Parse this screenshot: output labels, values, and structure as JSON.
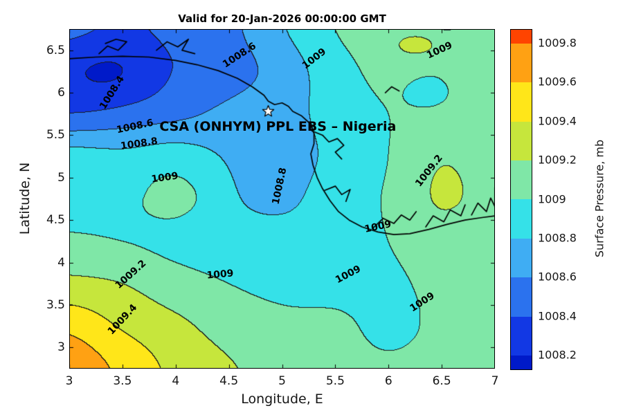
{
  "chart_data": {
    "type": "contour",
    "title": "Valid for 20-Jan-2026 00:00:00 GMT",
    "xlabel": "Longitude, E",
    "ylabel": "Latitude, N",
    "colorbar_label": "Surface Pressure, mb",
    "xlim": [
      3,
      7
    ],
    "ylim": [
      2.75,
      6.75
    ],
    "x_tick_values": [
      3,
      3.5,
      4,
      4.5,
      5,
      5.5,
      6,
      6.5,
      7
    ],
    "x_ticks": [
      "3",
      "3.5",
      "4",
      "4.5",
      "5",
      "5.5",
      "6",
      "6.5",
      "7"
    ],
    "y_tick_values": [
      3,
      3.5,
      4,
      4.5,
      5,
      5.5,
      6,
      6.5
    ],
    "y_ticks": [
      "3",
      "3.5",
      "4",
      "4.5",
      "5",
      "5.5",
      "6",
      "6.5"
    ],
    "levels": [
      1008.2,
      1008.4,
      1008.6,
      1008.8,
      1009.0,
      1009.2,
      1009.4,
      1009.6,
      1009.8
    ],
    "band_colors": [
      "#001ac9",
      "#1238e4",
      "#2b72ee",
      "#3fadf3",
      "#35e1e8",
      "#7fe7a7",
      "#c6e63c",
      "#ffe619",
      "#ffa113",
      "#ff4400"
    ],
    "colorbar_tick_values": [
      1008.2,
      1008.4,
      1008.6,
      1008.8,
      1009.0,
      1009.2,
      1009.4,
      1009.6,
      1009.8
    ],
    "colorbar_ticks": [
      "1008.2",
      "1008.4",
      "1008.6",
      "1008.8",
      "1009",
      "1009.2",
      "1009.4",
      "1009.6",
      "1009.8"
    ],
    "grid": {
      "lons": [
        3,
        3.5,
        4,
        4.5,
        5,
        5.5,
        6,
        6.5,
        7
      ],
      "lats": [
        6.75,
        6.25,
        5.75,
        5.25,
        4.75,
        4.25,
        3.75,
        3.25,
        2.75
      ],
      "values": [
        [
          1008.45,
          1008.38,
          1008.45,
          1008.55,
          1008.78,
          1009.0,
          1009.08,
          1008.99,
          1009.08
        ],
        [
          1008.3,
          1008.28,
          1008.42,
          1008.52,
          1008.68,
          1008.92,
          1009.05,
          1009.02,
          1009.08
        ],
        [
          1008.42,
          1008.48,
          1008.55,
          1008.65,
          1008.72,
          1008.88,
          1009.0,
          1009.05,
          1009.04
        ],
        [
          1008.88,
          1008.85,
          1008.9,
          1008.78,
          1008.72,
          1008.85,
          1009.0,
          1009.18,
          1009.1
        ],
        [
          1008.93,
          1008.95,
          1009.02,
          1008.82,
          1008.76,
          1008.9,
          1009.02,
          1009.22,
          1009.12
        ],
        [
          1009.03,
          1009.0,
          1008.95,
          1008.9,
          1008.88,
          1008.92,
          1009.0,
          1009.1,
          1009.05
        ],
        [
          1009.25,
          1009.2,
          1009.08,
          1009.0,
          1008.95,
          1008.95,
          1008.97,
          1009.04,
          1009.05
        ],
        [
          1009.55,
          1009.38,
          1009.25,
          1009.12,
          1009.05,
          1009.03,
          1008.97,
          1009.03,
          1009.08
        ],
        [
          1009.75,
          1009.55,
          1009.35,
          1009.22,
          1009.12,
          1009.05,
          1009.02,
          1009.05,
          1009.1
        ]
      ]
    },
    "anomalies": [
      {
        "lon": 3.3,
        "lat": 6.2,
        "sx": 0.32,
        "sy": 0.26,
        "amp": -0.1
      },
      {
        "lon": 6.28,
        "lat": 6.56,
        "sx": 0.14,
        "sy": 0.09,
        "amp": 0.3
      },
      {
        "lon": 6.35,
        "lat": 6.0,
        "sx": 0.13,
        "sy": 0.11,
        "amp": -0.12
      },
      {
        "lon": 4.12,
        "lat": 4.8,
        "sx": 0.26,
        "sy": 0.16,
        "amp": 0.05
      }
    ],
    "contour_labels": [
      {
        "text": "1008.4",
        "lon": 3.4,
        "lat": 6.0,
        "rot": -58
      },
      {
        "text": "1008.6",
        "lon": 4.6,
        "lat": 6.44,
        "rot": -33
      },
      {
        "text": "1009",
        "lon": 5.3,
        "lat": 6.4,
        "rot": -38
      },
      {
        "text": "1009",
        "lon": 6.48,
        "lat": 6.5,
        "rot": -25
      },
      {
        "text": "1008.6",
        "lon": 3.62,
        "lat": 5.6,
        "rot": -12
      },
      {
        "text": "1008.8",
        "lon": 3.66,
        "lat": 5.4,
        "rot": -8
      },
      {
        "text": "1009",
        "lon": 3.9,
        "lat": 5.0,
        "rot": -8
      },
      {
        "text": "1008.8",
        "lon": 4.98,
        "lat": 4.9,
        "rot": -78
      },
      {
        "text": "1009.2",
        "lon": 6.38,
        "lat": 5.08,
        "rot": -52
      },
      {
        "text": "1009",
        "lon": 5.9,
        "lat": 4.42,
        "rot": -12
      },
      {
        "text": "1009",
        "lon": 4.42,
        "lat": 3.86,
        "rot": -5
      },
      {
        "text": "1009",
        "lon": 5.62,
        "lat": 3.86,
        "rot": -28
      },
      {
        "text": "1009",
        "lon": 6.32,
        "lat": 3.53,
        "rot": -33
      },
      {
        "text": "1009.2",
        "lon": 3.58,
        "lat": 3.86,
        "rot": -42
      },
      {
        "text": "1009.4",
        "lon": 3.5,
        "lat": 3.33,
        "rot": -47
      }
    ],
    "site_label": {
      "text": "CSA (ONHYM) PPL EBS – Nigeria",
      "lon": 4.96,
      "lat": 5.6
    },
    "star": {
      "lon": 4.87,
      "lat": 5.78
    },
    "coastlines": [
      [
        [
          3.0,
          6.4
        ],
        [
          3.25,
          6.42
        ],
        [
          3.5,
          6.43
        ],
        [
          3.75,
          6.42
        ],
        [
          4.0,
          6.38
        ],
        [
          4.2,
          6.33
        ],
        [
          4.4,
          6.26
        ],
        [
          4.58,
          6.17
        ],
        [
          4.72,
          6.07
        ],
        [
          4.83,
          5.97
        ],
        [
          4.87,
          5.9
        ],
        [
          4.93,
          5.86
        ],
        [
          5.0,
          5.88
        ],
        [
          5.06,
          5.84
        ],
        [
          5.1,
          5.78
        ],
        [
          5.18,
          5.73
        ],
        [
          5.26,
          5.64
        ],
        [
          5.3,
          5.52
        ],
        [
          5.3,
          5.4
        ],
        [
          5.27,
          5.28
        ],
        [
          5.29,
          5.15
        ],
        [
          5.33,
          5.0
        ],
        [
          5.38,
          4.87
        ],
        [
          5.45,
          4.73
        ],
        [
          5.53,
          4.6
        ],
        [
          5.63,
          4.5
        ],
        [
          5.75,
          4.42
        ],
        [
          5.9,
          4.36
        ],
        [
          6.05,
          4.33
        ],
        [
          6.2,
          4.34
        ],
        [
          6.38,
          4.39
        ],
        [
          6.55,
          4.45
        ],
        [
          6.72,
          4.5
        ],
        [
          6.88,
          4.53
        ],
        [
          7.0,
          4.55
        ]
      ],
      [
        [
          5.28,
          5.55
        ],
        [
          5.38,
          5.5
        ],
        [
          5.44,
          5.42
        ],
        [
          5.52,
          5.46
        ],
        [
          5.58,
          5.38
        ],
        [
          5.5,
          5.3
        ],
        [
          5.56,
          5.22
        ]
      ],
      [
        [
          5.4,
          4.85
        ],
        [
          5.5,
          4.9
        ],
        [
          5.56,
          4.8
        ],
        [
          5.64,
          4.86
        ],
        [
          5.6,
          4.72
        ]
      ],
      [
        [
          5.85,
          4.4
        ],
        [
          5.95,
          4.52
        ],
        [
          6.05,
          4.46
        ],
        [
          6.12,
          4.56
        ],
        [
          6.2,
          4.5
        ],
        [
          6.26,
          4.6
        ]
      ],
      [
        [
          6.35,
          4.42
        ],
        [
          6.42,
          4.55
        ],
        [
          6.52,
          4.48
        ],
        [
          6.58,
          4.62
        ],
        [
          6.68,
          4.55
        ],
        [
          6.72,
          4.68
        ]
      ],
      [
        [
          6.78,
          4.56
        ],
        [
          6.84,
          4.7
        ],
        [
          6.92,
          4.6
        ],
        [
          6.96,
          4.76
        ],
        [
          7.0,
          4.66
        ],
        [
          7.0,
          4.88
        ]
      ],
      [
        [
          3.28,
          6.46
        ],
        [
          3.36,
          6.55
        ],
        [
          3.46,
          6.5
        ],
        [
          3.54,
          6.6
        ],
        [
          3.44,
          6.63
        ],
        [
          3.34,
          6.58
        ]
      ],
      [
        [
          3.82,
          6.5
        ],
        [
          3.92,
          6.6
        ],
        [
          4.02,
          6.54
        ],
        [
          4.12,
          6.63
        ],
        [
          4.06,
          6.5
        ],
        [
          4.18,
          6.46
        ]
      ],
      [
        [
          5.97,
          6.0
        ],
        [
          6.03,
          6.07
        ],
        [
          6.1,
          6.02
        ]
      ]
    ]
  }
}
